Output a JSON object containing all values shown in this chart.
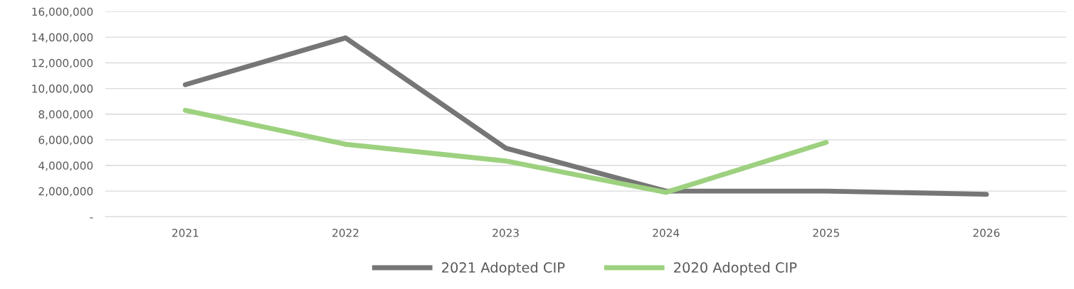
{
  "chart_data": {
    "type": "line",
    "categories": [
      "2021",
      "2022",
      "2023",
      "2024",
      "2025",
      "2026"
    ],
    "series": [
      {
        "name": "2021 Adopted CIP",
        "color": "#767676",
        "values": [
          10300000,
          13950000,
          5350000,
          2000000,
          2000000,
          1750000
        ]
      },
      {
        "name": "2020 Adopted CIP",
        "color": "#9dd17f",
        "values": [
          8300000,
          5650000,
          4350000,
          1900000,
          5800000,
          null
        ]
      }
    ],
    "ylim": [
      0,
      16000000
    ],
    "yticks": [
      {
        "value": 0,
        "label": "-"
      },
      {
        "value": 2000000,
        "label": "2,000,000"
      },
      {
        "value": 4000000,
        "label": "4,000,000"
      },
      {
        "value": 6000000,
        "label": "6,000,000"
      },
      {
        "value": 8000000,
        "label": "8,000,000"
      },
      {
        "value": 10000000,
        "label": "10,000,000"
      },
      {
        "value": 12000000,
        "label": "12,000,000"
      },
      {
        "value": 14000000,
        "label": "14,000,000"
      },
      {
        "value": 16000000,
        "label": "16,000,000"
      }
    ],
    "grid": "y",
    "legend": "bottom",
    "marker": "none",
    "line_style": "solid"
  }
}
